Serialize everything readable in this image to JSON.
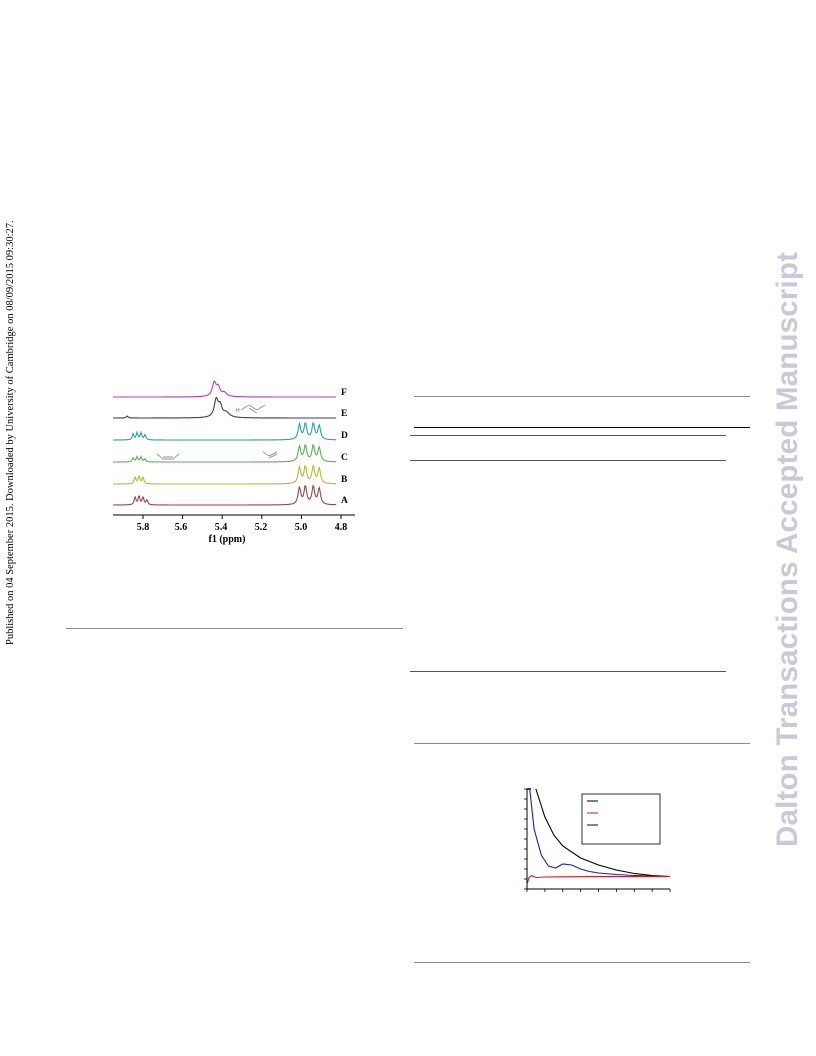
{
  "sidebar_left": {
    "text": "Published on 04 September 2015. Downloaded by University of Cambridge on 08/09/2015 09:30:27."
  },
  "sidebar_right": {
    "text": "Dalton Transactions Accepted Manuscript"
  },
  "nmr_figure": {
    "x_axis": {
      "label": "f1 (ppm)",
      "ticks": [
        "5.8",
        "5.6",
        "5.4",
        "5.2",
        "5.0",
        "4.8"
      ]
    },
    "traces": [
      {
        "label": "F",
        "color": "#b040b0"
      },
      {
        "label": "E",
        "color": "#3a3a78"
      },
      {
        "label": "D",
        "color": "#2aa0a8"
      },
      {
        "label": "C",
        "color": "#58b060"
      },
      {
        "label": "B",
        "color": "#b8b838"
      },
      {
        "label": "A",
        "color": "#984848"
      }
    ],
    "molecule_atom_label": "H"
  },
  "chart_data": {
    "type": "line",
    "title": "",
    "xlabel": "",
    "ylabel": "",
    "legend_position": "top-right",
    "series": [
      {
        "color": "#000000",
        "x": [
          0.5,
          1,
          1.5,
          2,
          3,
          4,
          5,
          6,
          7,
          8
        ],
        "y": [
          10.2,
          7.2,
          5.4,
          4.3,
          3.1,
          2.4,
          1.9,
          1.55,
          1.35,
          1.25
        ]
      },
      {
        "color": "#1a1acc",
        "x": [
          0.15,
          0.4,
          0.8,
          1.2,
          1.6,
          2.0,
          2.5,
          3,
          3.5,
          4,
          5,
          6,
          7,
          8
        ],
        "y": [
          10.2,
          6.0,
          3.4,
          2.3,
          2.1,
          2.5,
          2.4,
          2.0,
          1.75,
          1.6,
          1.45,
          1.35,
          1.28,
          1.25
        ]
      },
      {
        "color": "#cc1a1a",
        "x": [
          0,
          0.1,
          0.25,
          0.5,
          1,
          2,
          4,
          8
        ],
        "y": [
          0.4,
          1.1,
          1.35,
          1.15,
          1.2,
          1.22,
          1.24,
          1.25
        ]
      }
    ]
  }
}
